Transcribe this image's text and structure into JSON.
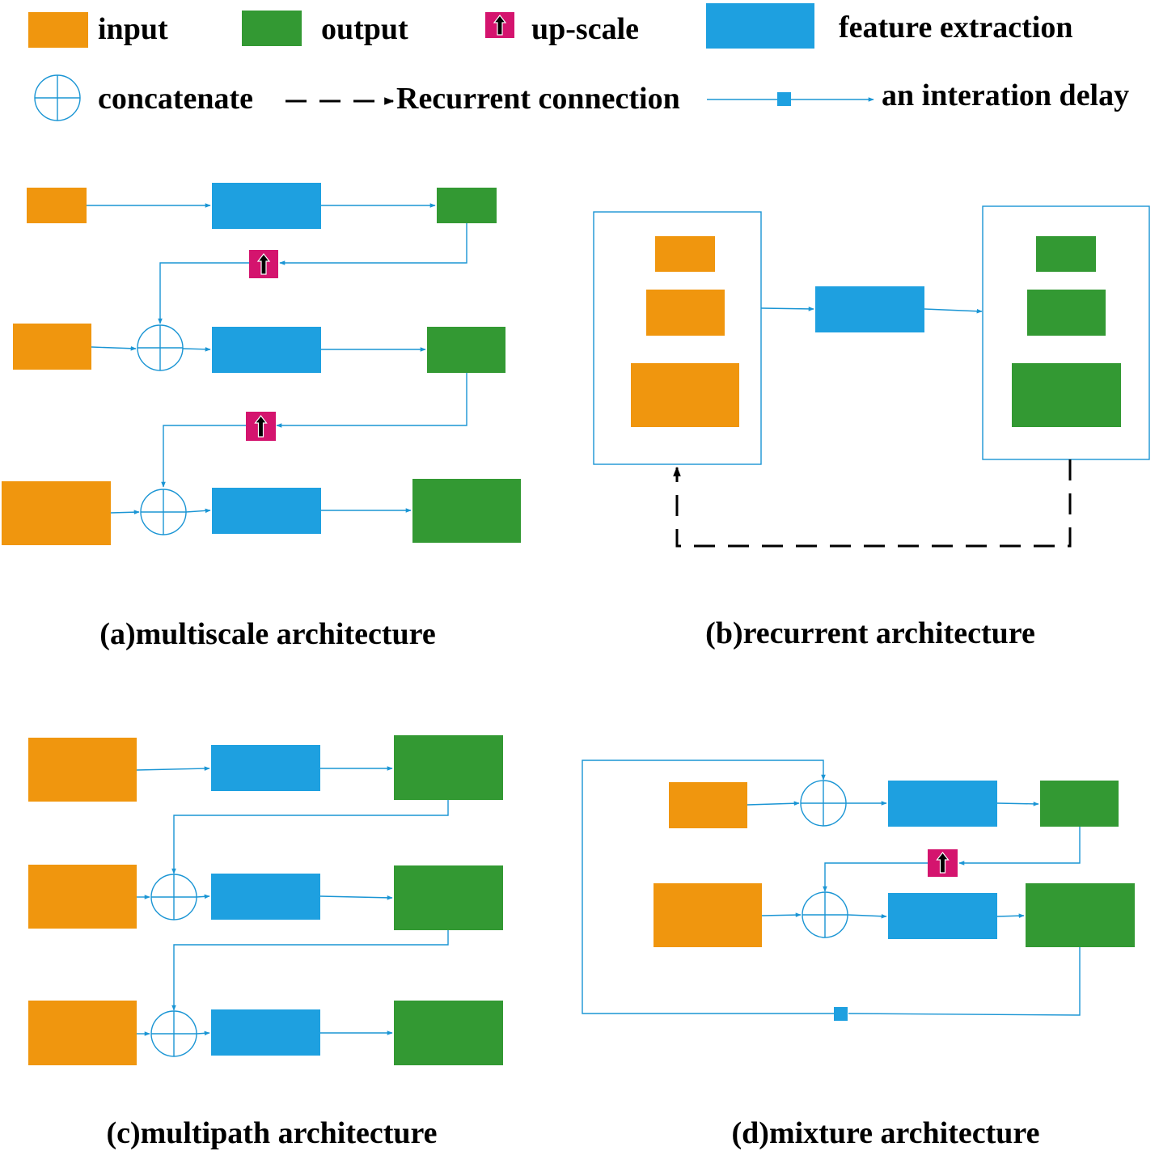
{
  "legend": {
    "input": "input",
    "output": "output",
    "upscale": "up-scale",
    "feature": "feature extraction",
    "concat": "concatenate",
    "recurrent": "Recurrent connection",
    "delay": "an interation delay"
  },
  "captions": {
    "a": "(a)multiscale architecture",
    "b": "(b)recurrent architecture",
    "c": "(c)multipath architecture",
    "d": "(d)mixture architecture"
  },
  "colors": {
    "input": "#f0960e",
    "output": "#339933",
    "feature": "#1ea0e0",
    "upscale": "#d4146e",
    "line": "#1a95d4",
    "recurrent": "#000000"
  },
  "icons": {
    "upscale": "up-arrow-icon",
    "concat": "circle-plus-icon",
    "delay": "small-square-icon"
  }
}
